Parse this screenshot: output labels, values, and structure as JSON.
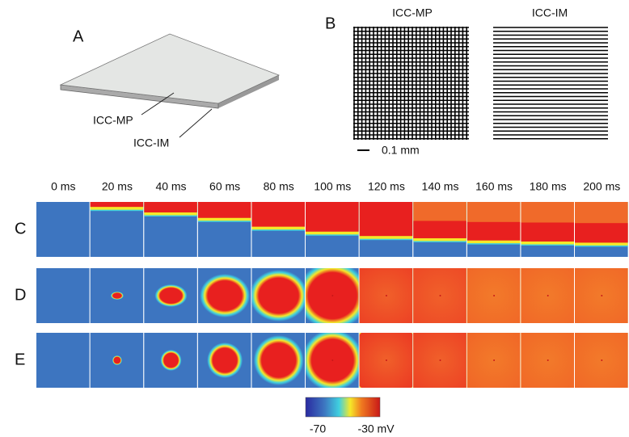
{
  "panel_a": {
    "label": "A",
    "layers": [
      "ICC-MP",
      "ICC-IM"
    ]
  },
  "panel_b": {
    "label": "B",
    "networks": [
      "ICC-MP",
      "ICC-IM"
    ],
    "scale_bar": "0.1 mm"
  },
  "time_labels": [
    "0 ms",
    "20 ms",
    "40 ms",
    "60 ms",
    "80 ms",
    "100 ms",
    "120 ms",
    "140 ms",
    "160 ms",
    "180 ms",
    "200 ms"
  ],
  "rows": [
    "C",
    "D",
    "E"
  ],
  "colorbar": {
    "min_label": "-70",
    "max_label": "-30 mV"
  }
}
